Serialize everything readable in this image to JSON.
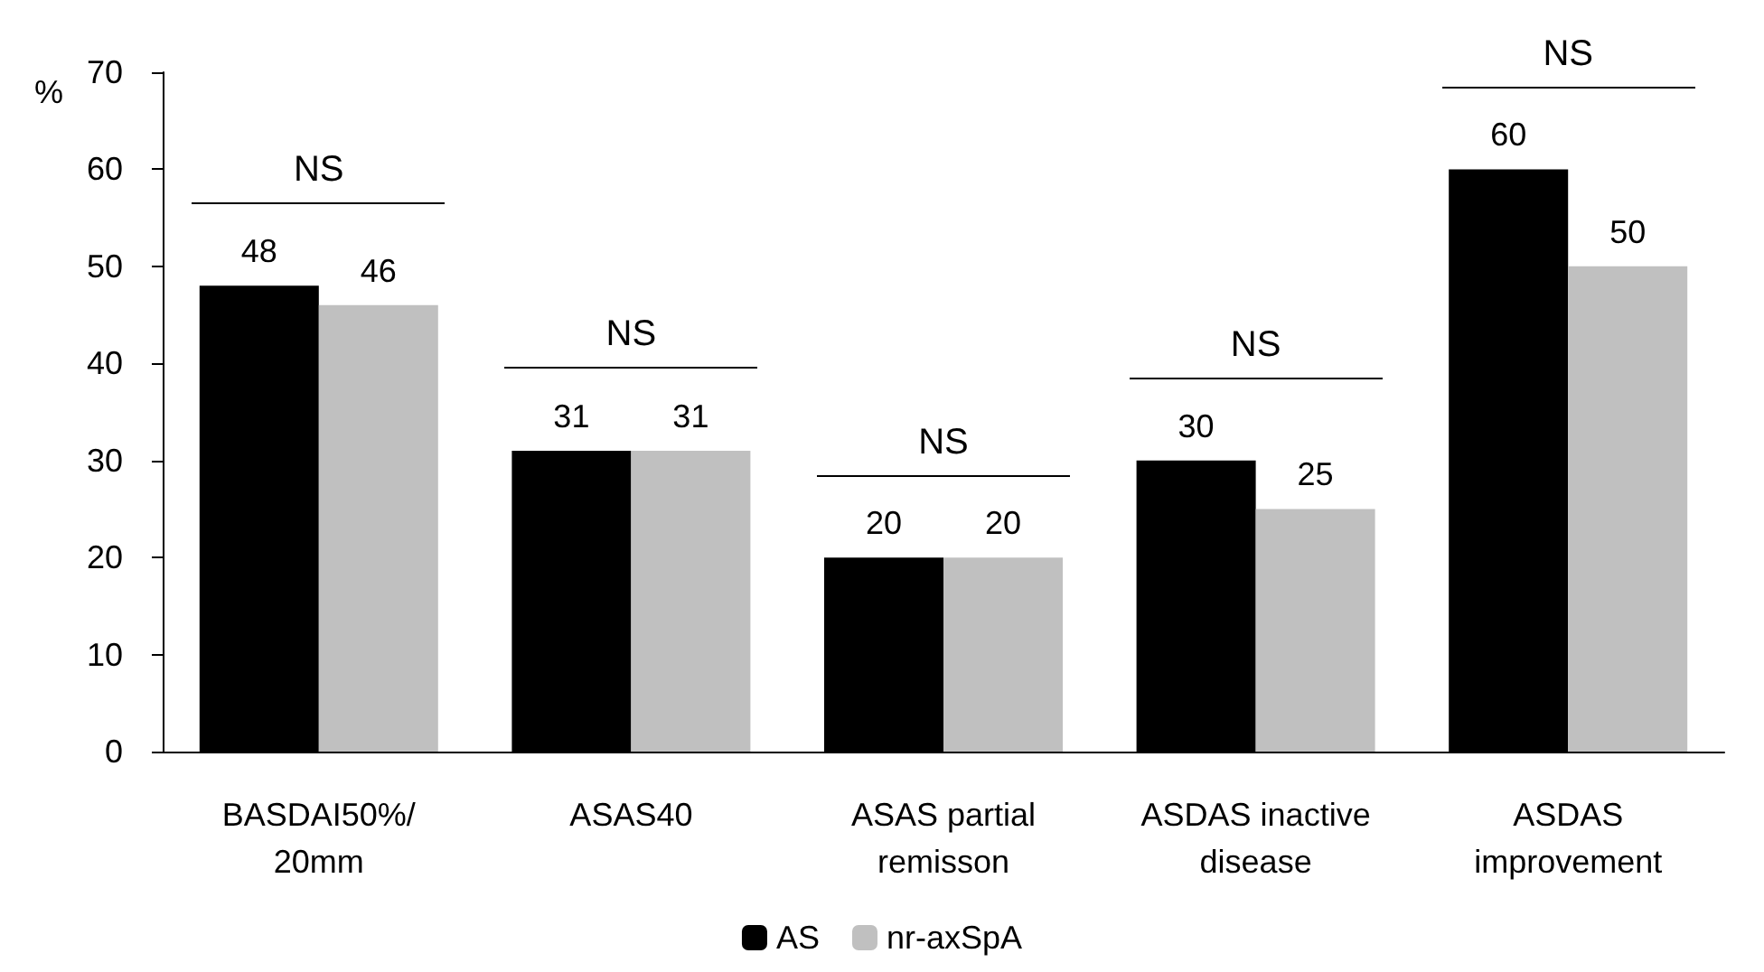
{
  "chart_data": {
    "type": "bar",
    "ylabel": "%",
    "categories": [
      "BASDAI50%/\n20mm",
      "ASAS40",
      "ASAS partial\nremisson",
      "ASDAS inactive\ndisease",
      "ASDAS\nimprovement"
    ],
    "series": [
      {
        "name": "AS",
        "color": "#000000",
        "values": [
          48,
          31,
          20,
          30,
          60
        ]
      },
      {
        "name": "nr-axSpA",
        "color": "#c0c0c0",
        "values": [
          46,
          31,
          20,
          25,
          50
        ]
      }
    ],
    "ylim": [
      0,
      70
    ],
    "yticks": [
      0,
      10,
      20,
      30,
      40,
      50,
      60,
      70
    ],
    "grid": false,
    "legend": "bottom",
    "data_labels": true,
    "annotations": [
      "NS",
      "NS",
      "NS",
      "NS",
      "NS"
    ]
  }
}
